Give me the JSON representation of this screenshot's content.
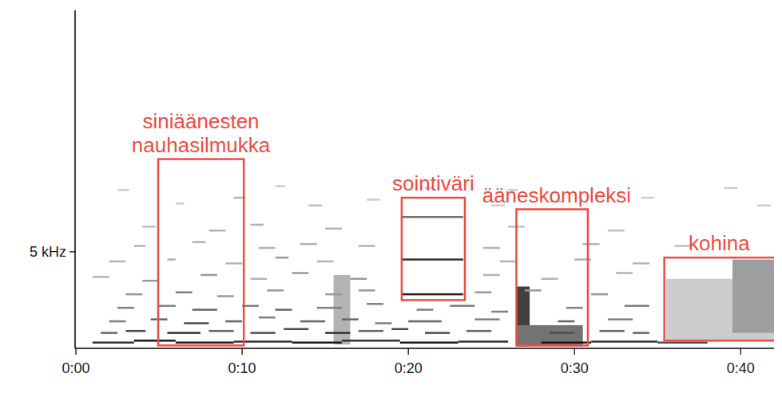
{
  "chart_data": {
    "type": "spectrogram",
    "xlim": [
      0,
      42
    ],
    "ylim": [
      0,
      17.5
    ],
    "xticks": [
      {
        "value": 0,
        "label": "0:00"
      },
      {
        "value": 10,
        "label": "0:10"
      },
      {
        "value": 20,
        "label": "0:20"
      },
      {
        "value": 30,
        "label": "0:30"
      },
      {
        "value": 40,
        "label": "0:40"
      }
    ],
    "yticks": [
      {
        "value": 5,
        "label": "5 kHz"
      }
    ],
    "color": "#ee4c43",
    "patches": [
      [
        15.5,
        16.5,
        0.2,
        3.8,
        0.3
      ],
      [
        26.5,
        27.3,
        0.1,
        3.2,
        0.75
      ],
      [
        26.5,
        30.5,
        0.1,
        1.2,
        0.55
      ],
      [
        35.5,
        42,
        0.4,
        3.6,
        0.2
      ],
      [
        39.5,
        42,
        0.8,
        4.6,
        0.38
      ]
    ],
    "partials": [
      [
        1.0,
        3.5,
        0.3,
        0.8
      ],
      [
        3.5,
        6.0,
        0.4,
        0.9
      ],
      [
        6.0,
        9.5,
        0.3,
        0.9
      ],
      [
        9.5,
        13,
        0.35,
        0.8
      ],
      [
        13,
        16,
        0.3,
        0.9
      ],
      [
        16,
        19.5,
        0.4,
        0.8
      ],
      [
        19.5,
        23,
        0.3,
        0.9
      ],
      [
        23,
        26,
        0.35,
        0.8
      ],
      [
        28,
        31,
        0.3,
        0.9
      ],
      [
        31,
        35,
        0.35,
        0.8
      ],
      [
        35,
        38,
        0.3,
        0.7
      ],
      [
        1.5,
        2.5,
        0.8,
        0.6
      ],
      [
        3,
        4.2,
        0.9,
        0.7
      ],
      [
        5.5,
        7.5,
        0.8,
        0.8
      ],
      [
        8,
        9.5,
        0.9,
        0.6
      ],
      [
        10.5,
        12,
        0.8,
        0.7
      ],
      [
        12.5,
        14,
        1.0,
        0.7
      ],
      [
        15,
        16.5,
        0.8,
        0.8
      ],
      [
        17,
        18.5,
        0.9,
        0.6
      ],
      [
        19,
        20,
        1.0,
        0.7
      ],
      [
        21,
        22.5,
        0.8,
        0.7
      ],
      [
        23.5,
        25,
        0.9,
        0.6
      ],
      [
        28.5,
        30,
        0.8,
        0.7
      ],
      [
        31.5,
        33,
        0.9,
        0.6
      ],
      [
        33.5,
        34.5,
        0.8,
        0.6
      ],
      [
        2,
        3,
        1.4,
        0.5
      ],
      [
        4.5,
        5.5,
        1.5,
        0.6
      ],
      [
        6.5,
        8,
        1.3,
        0.7
      ],
      [
        9,
        10,
        1.4,
        0.6
      ],
      [
        11,
        12,
        1.6,
        0.5
      ],
      [
        13.5,
        15,
        1.4,
        0.6
      ],
      [
        16,
        17,
        1.5,
        0.6
      ],
      [
        18,
        19,
        1.3,
        0.5
      ],
      [
        20,
        22,
        1.4,
        0.6
      ],
      [
        24,
        25.5,
        1.5,
        0.5
      ],
      [
        29,
        30,
        1.4,
        0.6
      ],
      [
        32,
        33.5,
        1.5,
        0.5
      ],
      [
        2.5,
        3.5,
        2.1,
        0.5
      ],
      [
        5,
        6,
        2.2,
        0.5
      ],
      [
        7,
        8.5,
        2.0,
        0.6
      ],
      [
        10,
        11,
        2.2,
        0.5
      ],
      [
        12,
        13,
        2.0,
        0.6
      ],
      [
        14.5,
        16,
        2.1,
        0.5
      ],
      [
        17.5,
        18.5,
        2.3,
        0.5
      ],
      [
        20.5,
        21.5,
        2.0,
        0.5
      ],
      [
        22.5,
        24,
        2.2,
        0.5
      ],
      [
        25,
        26,
        1.9,
        0.5
      ],
      [
        29.5,
        30.5,
        2.1,
        0.5
      ],
      [
        33,
        34.5,
        2.2,
        0.5
      ],
      [
        3,
        4,
        2.8,
        0.4
      ],
      [
        6,
        7,
        2.9,
        0.5
      ],
      [
        8.5,
        9.5,
        2.7,
        0.4
      ],
      [
        11.5,
        12.5,
        3.0,
        0.4
      ],
      [
        15,
        16,
        2.8,
        0.4
      ],
      [
        17,
        18,
        3.0,
        0.4
      ],
      [
        19.6,
        23.3,
        2.8,
        0.85
      ],
      [
        24,
        25,
        2.9,
        0.4
      ],
      [
        27,
        28,
        3.0,
        0.4
      ],
      [
        31,
        32,
        2.8,
        0.4
      ],
      [
        1,
        2,
        3.7,
        0.3
      ],
      [
        4,
        5,
        3.5,
        0.4
      ],
      [
        7.5,
        8.5,
        3.8,
        0.4
      ],
      [
        10.5,
        11.5,
        3.6,
        0.3
      ],
      [
        13,
        14,
        3.9,
        0.4
      ],
      [
        16.5,
        17.5,
        3.6,
        0.4
      ],
      [
        24.5,
        25.5,
        3.8,
        0.3
      ],
      [
        28,
        29,
        3.6,
        0.3
      ],
      [
        32.5,
        33.5,
        3.9,
        0.3
      ],
      [
        2,
        3,
        4.5,
        0.3
      ],
      [
        5.5,
        6,
        4.6,
        0.3
      ],
      [
        9,
        10,
        4.4,
        0.3
      ],
      [
        12,
        12.8,
        4.7,
        0.4
      ],
      [
        14.5,
        15.5,
        4.5,
        0.3
      ],
      [
        19.6,
        23.3,
        4.6,
        0.8
      ],
      [
        25.5,
        26.5,
        4.5,
        0.3
      ],
      [
        30,
        31,
        4.6,
        0.3
      ],
      [
        33.5,
        34.5,
        4.4,
        0.3
      ],
      [
        3.5,
        4.2,
        5.3,
        0.3
      ],
      [
        7,
        7.8,
        5.5,
        0.3
      ],
      [
        11,
        12,
        5.2,
        0.3
      ],
      [
        13.5,
        14.5,
        5.4,
        0.3
      ],
      [
        17,
        18,
        5.3,
        0.3
      ],
      [
        24.5,
        25.5,
        5.2,
        0.3
      ],
      [
        30.5,
        31.5,
        5.4,
        0.3
      ],
      [
        36,
        37,
        5.3,
        0.25
      ],
      [
        4,
        4.8,
        6.3,
        0.25
      ],
      [
        8,
        9,
        6.1,
        0.3
      ],
      [
        10.5,
        11.3,
        6.4,
        0.3
      ],
      [
        15,
        16,
        6.2,
        0.3
      ],
      [
        19.6,
        23.3,
        6.8,
        0.55
      ],
      [
        26,
        27,
        6.3,
        0.25
      ],
      [
        32,
        33,
        6.1,
        0.25
      ],
      [
        6,
        6.5,
        7.5,
        0.2
      ],
      [
        9.5,
        10.2,
        7.8,
        0.3
      ],
      [
        14,
        14.8,
        7.4,
        0.25
      ],
      [
        17.5,
        18.3,
        7.7,
        0.2
      ],
      [
        25,
        25.8,
        7.4,
        0.2
      ],
      [
        28.5,
        29.3,
        7.6,
        0.2
      ],
      [
        34,
        34.8,
        7.8,
        0.2
      ],
      [
        41,
        41.8,
        7.4,
        0.2
      ],
      [
        2.5,
        3.2,
        8.2,
        0.2
      ],
      [
        12,
        12.6,
        8.4,
        0.2
      ],
      [
        21,
        21.5,
        8.3,
        0.2
      ],
      [
        26,
        26.6,
        8.2,
        0.2
      ],
      [
        39,
        39.8,
        8.3,
        0.2
      ]
    ],
    "annotations": [
      {
        "label": "siniäänesten nauhasilmukka",
        "x": [
          4.95,
          10.1
        ],
        "y": [
          0.15,
          9.8
        ]
      },
      {
        "label": "sointiväri",
        "x": [
          19.6,
          23.4
        ],
        "y": [
          2.5,
          7.8
        ]
      },
      {
        "label": "ääneskompleksi",
        "x": [
          26.5,
          30.8
        ],
        "y": [
          0.15,
          7.2
        ]
      },
      {
        "label": "kohina",
        "x": [
          35.4,
          42.4
        ],
        "y": [
          0.4,
          4.7
        ]
      }
    ]
  }
}
